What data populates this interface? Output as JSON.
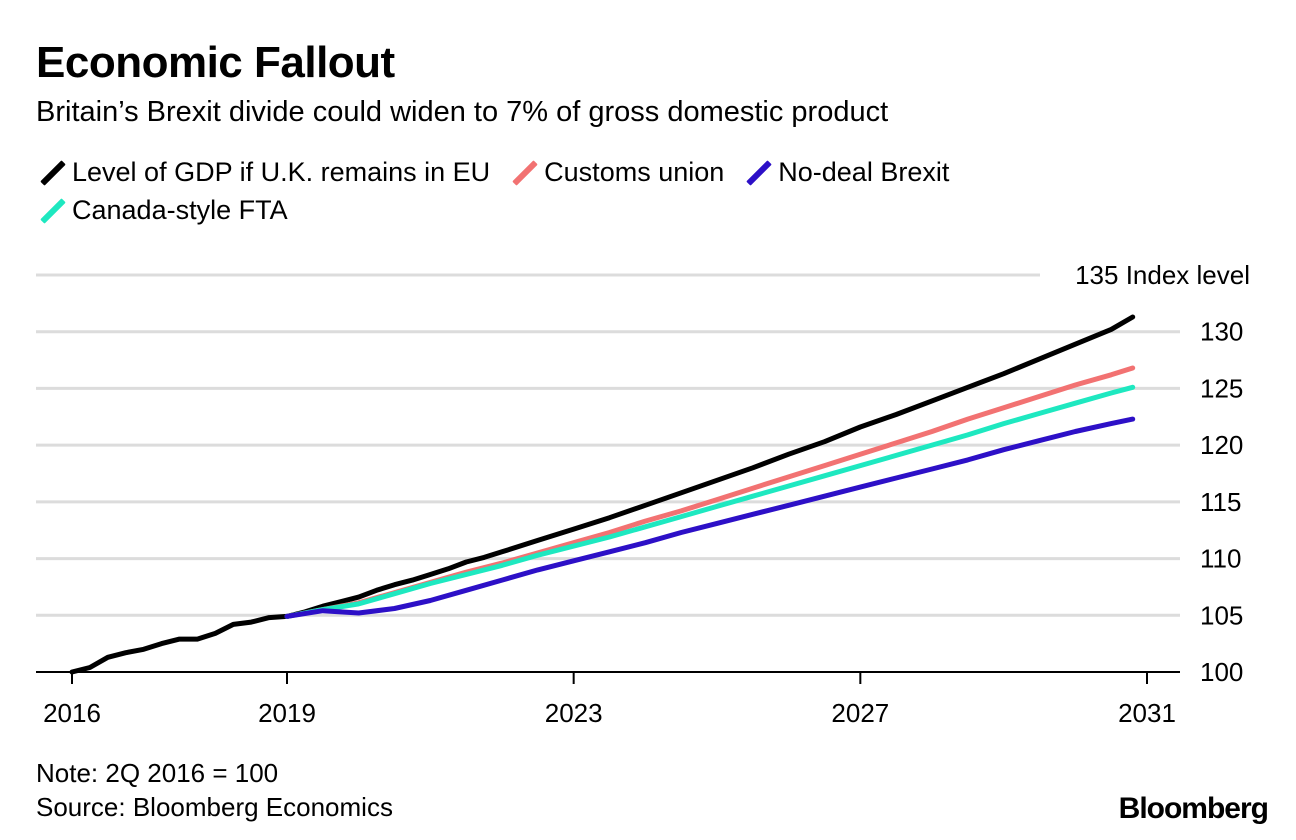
{
  "chart_data": {
    "type": "line",
    "title": "Economic Fallout",
    "subtitle": "Britain’s Brexit divide could widen to 7% of gross domestic product",
    "ylabel": "135 Index level",
    "ylim": [
      100,
      135
    ],
    "xlim": [
      2016,
      2031
    ],
    "y_ticks": [
      100,
      105,
      110,
      115,
      120,
      125,
      130
    ],
    "y_tick_labels": [
      "100",
      "105",
      "110",
      "115",
      "120",
      "125",
      "130"
    ],
    "x_ticks": [
      2016,
      2019,
      2023,
      2027,
      2031
    ],
    "x_tick_labels": [
      "2016",
      "2019",
      "2023",
      "2027",
      "2031"
    ],
    "grid": true,
    "legend_position": "top",
    "series": [
      {
        "name": "Level of GDP if U.K. remains in EU",
        "color": "#000000",
        "x": [
          2016.0,
          2016.25,
          2016.5,
          2016.75,
          2017.0,
          2017.25,
          2017.5,
          2017.75,
          2018.0,
          2018.25,
          2018.5,
          2018.75,
          2019.0,
          2019.25,
          2019.5,
          2019.75,
          2020.0,
          2020.25,
          2020.5,
          2020.75,
          2021.0,
          2021.25,
          2021.5,
          2021.75,
          2022.0,
          2022.5,
          2023.0,
          2023.5,
          2024.0,
          2024.5,
          2025.0,
          2025.5,
          2026.0,
          2026.5,
          2027.0,
          2027.5,
          2028.0,
          2028.5,
          2029.0,
          2029.5,
          2030.0,
          2030.5,
          2030.8
        ],
        "values": [
          100.0,
          100.4,
          101.3,
          101.7,
          102.0,
          102.5,
          102.9,
          102.9,
          103.4,
          104.2,
          104.4,
          104.8,
          104.9,
          105.3,
          105.8,
          106.2,
          106.6,
          107.2,
          107.7,
          108.1,
          108.6,
          109.1,
          109.7,
          110.1,
          110.6,
          111.6,
          112.6,
          113.6,
          114.7,
          115.8,
          116.9,
          118.0,
          119.2,
          120.3,
          121.6,
          122.7,
          123.9,
          125.1,
          126.3,
          127.6,
          128.9,
          130.2,
          131.3
        ]
      },
      {
        "name": "Customs union",
        "color": "#f27272",
        "x": [
          2019.0,
          2019.5,
          2020.0,
          2020.5,
          2021.0,
          2021.5,
          2022.0,
          2022.5,
          2023.0,
          2023.5,
          2024.0,
          2024.5,
          2025.0,
          2025.5,
          2026.0,
          2026.5,
          2027.0,
          2027.5,
          2028.0,
          2028.5,
          2029.0,
          2029.5,
          2030.0,
          2030.5,
          2030.8
        ],
        "values": [
          104.9,
          105.5,
          106.1,
          107.0,
          107.9,
          108.8,
          109.6,
          110.5,
          111.4,
          112.3,
          113.3,
          114.2,
          115.2,
          116.2,
          117.2,
          118.2,
          119.2,
          120.2,
          121.2,
          122.3,
          123.3,
          124.3,
          125.3,
          126.2,
          126.8
        ]
      },
      {
        "name": "No-deal Brexit",
        "color": "#2d10c7",
        "x": [
          2019.0,
          2019.5,
          2020.0,
          2020.5,
          2021.0,
          2021.5,
          2022.0,
          2022.5,
          2023.0,
          2023.5,
          2024.0,
          2024.5,
          2025.0,
          2025.5,
          2026.0,
          2026.5,
          2027.0,
          2027.5,
          2028.0,
          2028.5,
          2029.0,
          2029.5,
          2030.0,
          2030.5,
          2030.8
        ],
        "values": [
          104.9,
          105.4,
          105.2,
          105.6,
          106.3,
          107.2,
          108.1,
          109.0,
          109.8,
          110.6,
          111.4,
          112.3,
          113.1,
          113.9,
          114.7,
          115.5,
          116.3,
          117.1,
          117.9,
          118.7,
          119.6,
          120.4,
          121.2,
          121.9,
          122.3
        ]
      },
      {
        "name": "Canada-style FTA",
        "color": "#1ee8c0",
        "x": [
          2019.0,
          2019.5,
          2020.0,
          2020.5,
          2021.0,
          2021.5,
          2022.0,
          2022.5,
          2023.0,
          2023.5,
          2024.0,
          2024.5,
          2025.0,
          2025.5,
          2026.0,
          2026.5,
          2027.0,
          2027.5,
          2028.0,
          2028.5,
          2029.0,
          2029.5,
          2030.0,
          2030.5,
          2030.8
        ],
        "values": [
          104.9,
          105.5,
          106.0,
          106.9,
          107.8,
          108.6,
          109.4,
          110.3,
          111.1,
          111.9,
          112.8,
          113.7,
          114.6,
          115.5,
          116.4,
          117.3,
          118.2,
          119.1,
          120.0,
          120.9,
          121.9,
          122.8,
          123.7,
          124.6,
          125.1
        ]
      }
    ]
  },
  "legend": {
    "items": [
      {
        "label": "Level of GDP if U.K. remains in EU",
        "color": "#000000"
      },
      {
        "label": "Customs union",
        "color": "#f27272"
      },
      {
        "label": "No-deal Brexit",
        "color": "#2d10c7"
      },
      {
        "label": "Canada-style FTA",
        "color": "#1ee8c0"
      }
    ]
  },
  "footer": {
    "note": "Note: 2Q 2016 = 100",
    "source": "Source: Bloomberg Economics",
    "brand": "Bloomberg"
  }
}
